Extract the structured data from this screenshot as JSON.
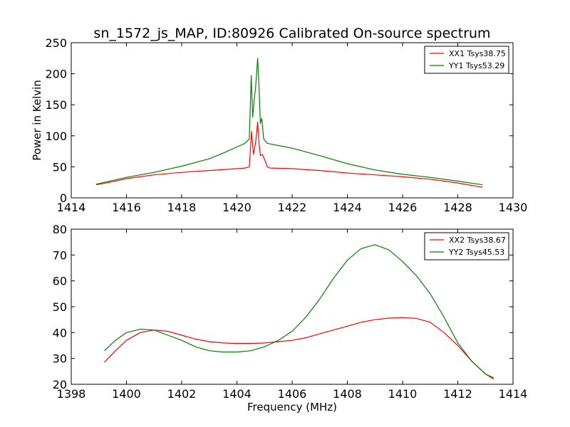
{
  "chart_data": [
    {
      "type": "line",
      "title": "sn_1572_js_MAP, ID:80926 Calibrated On-source spectrum",
      "xlabel": "",
      "ylabel": "Power in Kelvin",
      "xlim": [
        1414,
        1430
      ],
      "ylim": [
        0,
        250
      ],
      "xticks": [
        1414,
        1416,
        1418,
        1420,
        1422,
        1424,
        1426,
        1428,
        1430
      ],
      "yticks": [
        0,
        50,
        100,
        150,
        200,
        250
      ],
      "grid": false,
      "legend_position": "top-right",
      "series": [
        {
          "name": "XX1 Tsys38.75",
          "color": "#ff0000",
          "x": [
            1414.9,
            1415.5,
            1416.0,
            1417.0,
            1418.0,
            1419.0,
            1420.0,
            1420.3,
            1420.45,
            1420.53,
            1420.6,
            1420.68,
            1420.75,
            1420.8,
            1420.85,
            1420.92,
            1420.97,
            1421.02,
            1421.1,
            1421.2,
            1422.0,
            1423.0,
            1424.0,
            1425.0,
            1426.0,
            1427.0,
            1428.0,
            1428.9
          ],
          "y": [
            21,
            26,
            31,
            37,
            41,
            44,
            47,
            48,
            50,
            107,
            70,
            90,
            122,
            90,
            68,
            70,
            65,
            60,
            50,
            48,
            47,
            44,
            40,
            37,
            34,
            30,
            24,
            17
          ]
        },
        {
          "name": "YY1 Tsys53.29",
          "color": "#008000",
          "x": [
            1414.9,
            1415.5,
            1416.0,
            1417.0,
            1418.0,
            1419.0,
            1419.5,
            1420.0,
            1420.3,
            1420.45,
            1420.52,
            1420.57,
            1420.62,
            1420.68,
            1420.75,
            1420.8,
            1420.85,
            1420.9,
            1420.97,
            1421.02,
            1421.1,
            1421.3,
            1422.0,
            1423.0,
            1424.0,
            1425.0,
            1426.0,
            1427.0,
            1428.0,
            1428.9
          ],
          "y": [
            22,
            28,
            33,
            41,
            51,
            63,
            72,
            82,
            88,
            95,
            197,
            130,
            155,
            180,
            225,
            180,
            120,
            128,
            95,
            92,
            88,
            86,
            80,
            68,
            55,
            45,
            38,
            33,
            27,
            21
          ]
        }
      ]
    },
    {
      "type": "line",
      "title": "",
      "xlabel": "Frequency (MHz)",
      "ylabel": "",
      "xlim": [
        1398,
        1414
      ],
      "ylim": [
        20,
        80
      ],
      "xticks": [
        1398,
        1400,
        1402,
        1404,
        1406,
        1408,
        1410,
        1412,
        1414
      ],
      "yticks": [
        20,
        30,
        40,
        50,
        60,
        70,
        80
      ],
      "grid": false,
      "legend_position": "top-right",
      "series": [
        {
          "name": "XX2 Tsys38.67",
          "color": "#ff0000",
          "x": [
            1399.2,
            1399.6,
            1400.0,
            1400.5,
            1401.0,
            1401.5,
            1402.0,
            1402.5,
            1403.0,
            1403.5,
            1404.0,
            1404.5,
            1405.0,
            1405.5,
            1406.0,
            1406.5,
            1407.0,
            1407.5,
            1408.0,
            1408.5,
            1409.0,
            1409.5,
            1410.0,
            1410.5,
            1411.0,
            1411.5,
            1412.0,
            1412.5,
            1413.0,
            1413.3
          ],
          "y": [
            28.5,
            33,
            37,
            40,
            41,
            40.5,
            39,
            37.5,
            36.5,
            36,
            35.8,
            35.8,
            36,
            36.5,
            37,
            38,
            39.5,
            41,
            42.5,
            44,
            45,
            45.6,
            45.8,
            45.5,
            44,
            40,
            35,
            29,
            24,
            22.5
          ]
        },
        {
          "name": "YY2 Tsys45.53",
          "color": "#008000",
          "x": [
            1399.2,
            1399.6,
            1400.0,
            1400.5,
            1401.0,
            1401.5,
            1402.0,
            1402.5,
            1403.0,
            1403.5,
            1404.0,
            1404.5,
            1405.0,
            1405.5,
            1406.0,
            1406.5,
            1407.0,
            1407.5,
            1408.0,
            1408.5,
            1409.0,
            1409.5,
            1410.0,
            1410.5,
            1411.0,
            1411.5,
            1412.0,
            1412.5,
            1413.0,
            1413.3
          ],
          "y": [
            33,
            37,
            40,
            41.3,
            41,
            39,
            37,
            34.5,
            33,
            32.5,
            32.5,
            33,
            34.5,
            37,
            40.5,
            46,
            53,
            61,
            68,
            72.5,
            74,
            72,
            67.5,
            62,
            55,
            46,
            36,
            29,
            24,
            22
          ]
        }
      ]
    }
  ]
}
